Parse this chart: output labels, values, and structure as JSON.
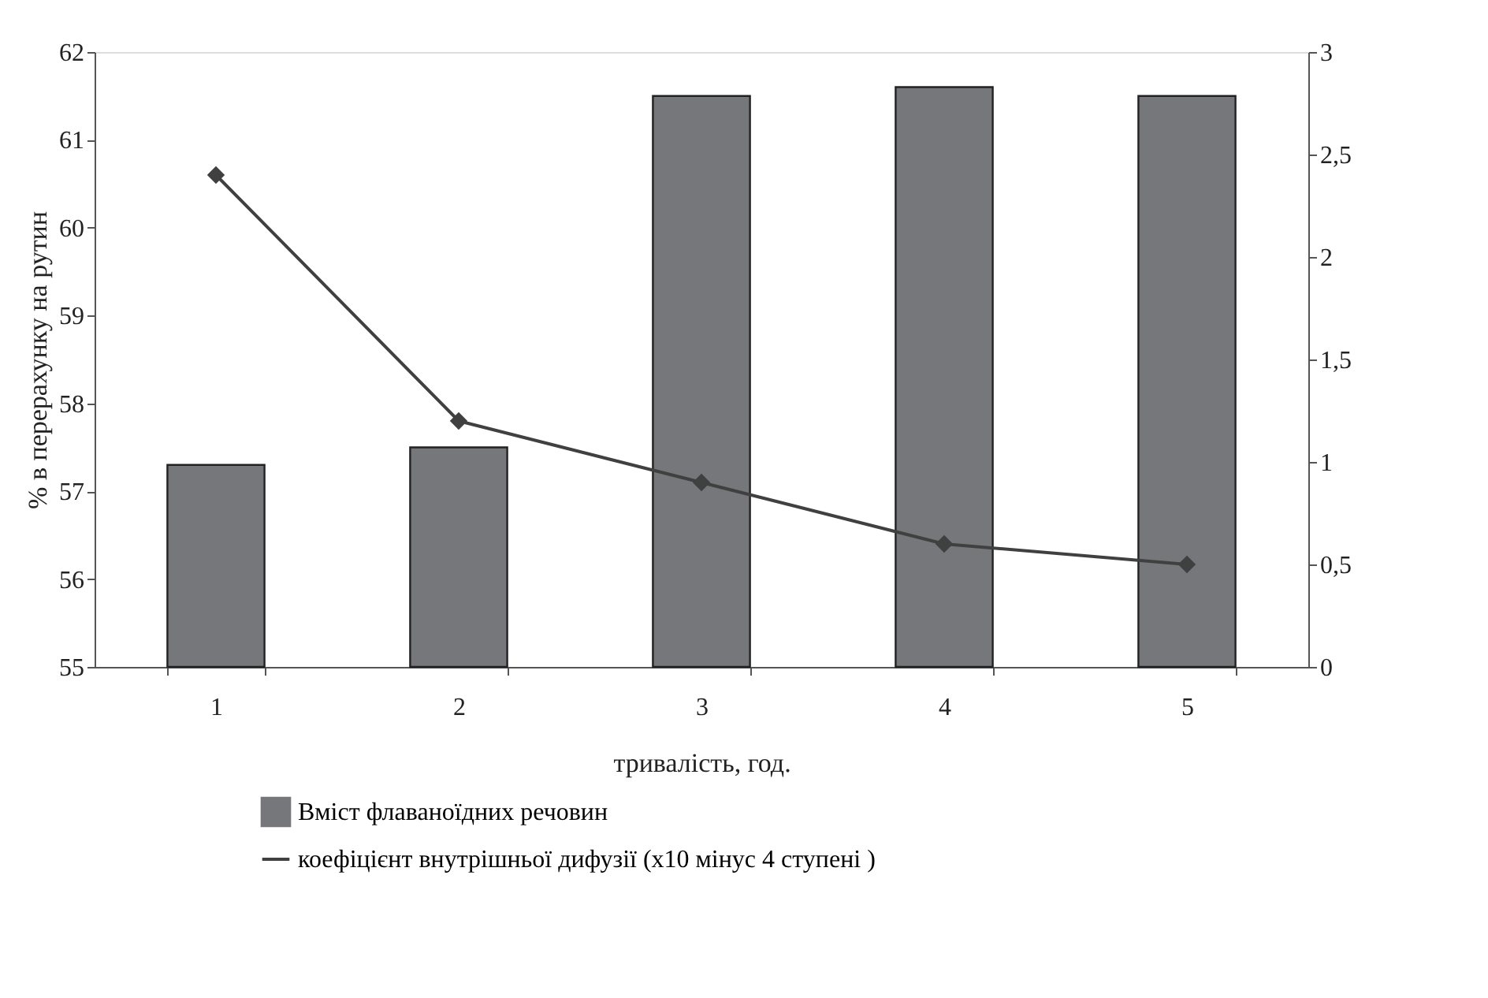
{
  "chart_data": {
    "type": "bar",
    "categories": [
      "1",
      "2",
      "3",
      "4",
      "5"
    ],
    "xlabel": "тривалість, год.",
    "ylabel": "% в перерахунку на рутин",
    "series": [
      {
        "name": "Вміст флаваноїдних речовин",
        "color": "#76777b",
        "values": [
          57.3,
          57.5,
          61.5,
          61.6,
          61.5
        ]
      },
      {
        "name": "коефіцієнт внутрішньої дифузії (х10 мінус 4 ступені )",
        "type": "line",
        "axis": "y2",
        "color": "#404040",
        "marker": "diamond",
        "values": [
          2.4,
          1.2,
          0.9,
          0.6,
          0.5
        ]
      }
    ],
    "ylim": [
      55,
      62
    ],
    "yticks": [
      55,
      56,
      57,
      58,
      59,
      60,
      61,
      62
    ],
    "y2lim": [
      0,
      3
    ],
    "y2ticks": [
      0,
      {
        "value": 0.5,
        "label": "0,5"
      },
      1,
      {
        "value": 1.5,
        "label": "1,5"
      },
      2,
      {
        "value": 2.5,
        "label": "2,5"
      },
      3
    ],
    "grid": false,
    "legend": "bottom"
  }
}
